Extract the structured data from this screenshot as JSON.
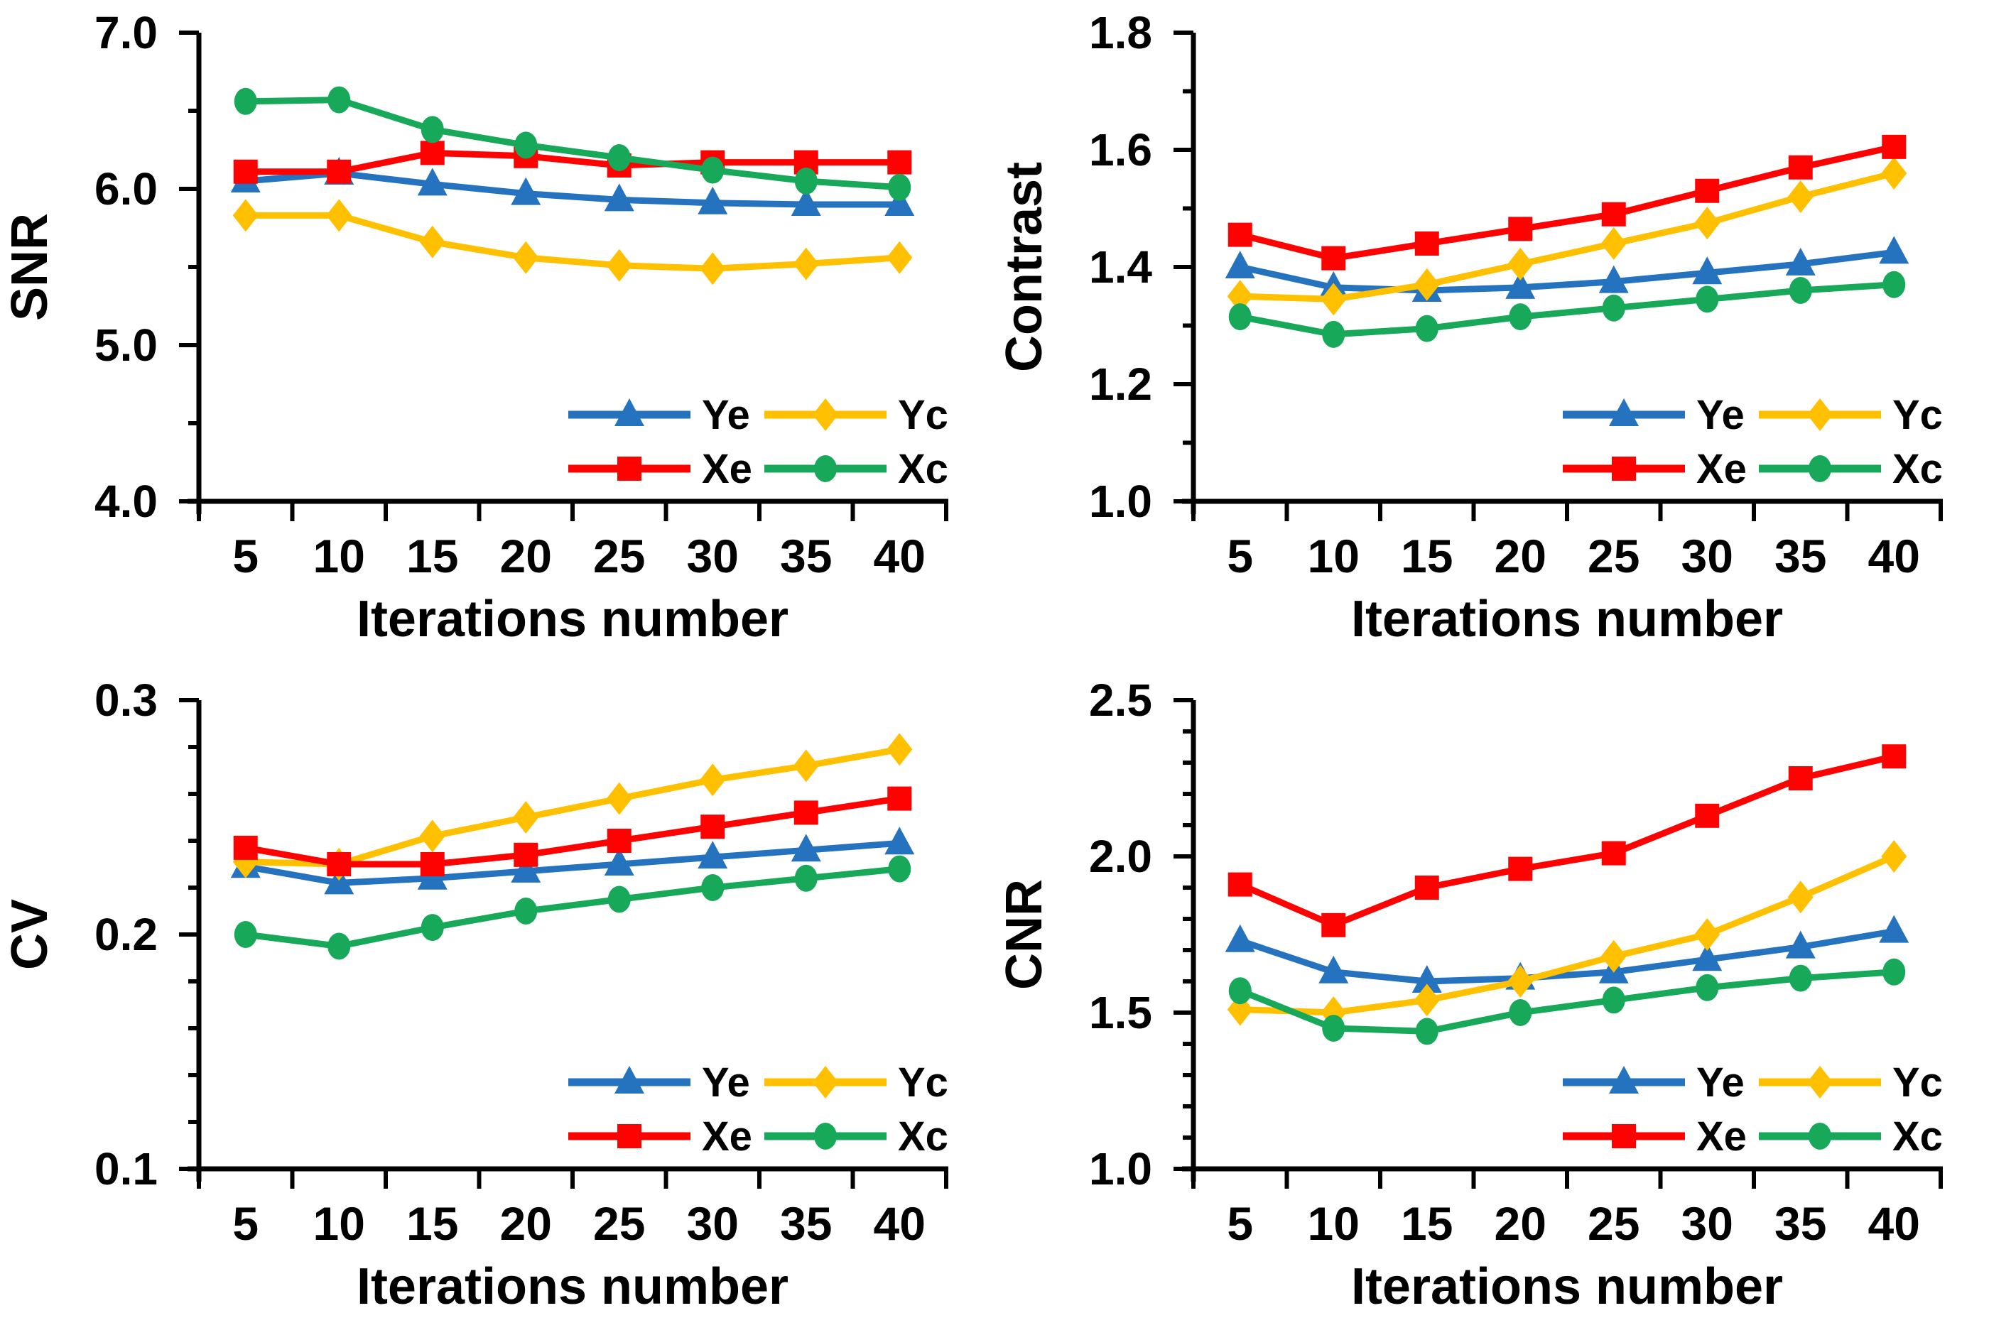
{
  "figure": {
    "background": "#ffffff",
    "text_color": "#000000",
    "layout": "2x2 grid of line charts"
  },
  "palette": {
    "Ye": "#2573BE",
    "Yc": "#FFC000",
    "Xe": "#FE0202",
    "Xc": "#18A85A"
  },
  "chart_data": [
    {
      "type": "line",
      "title": "",
      "ylabel": "SNR",
      "xlabel": "Iterations number",
      "categories": [
        "5",
        "10",
        "15",
        "20",
        "25",
        "30",
        "35",
        "40"
      ],
      "ylim": [
        4.0,
        7.0
      ],
      "y_major_step": 1.0,
      "y_minor_step": 0.5,
      "ytick_labels": [
        "4.0",
        "5.0",
        "6.0",
        "7.0"
      ],
      "grid": false,
      "legend_position": "inside-bottom-right",
      "series": [
        {
          "name": "Ye",
          "color": "#2573BE",
          "marker": "triangle",
          "values": [
            6.05,
            6.1,
            6.03,
            5.97,
            5.93,
            5.91,
            5.9,
            5.9
          ]
        },
        {
          "name": "Yc",
          "color": "#FFC000",
          "marker": "diamond",
          "values": [
            5.83,
            5.83,
            5.66,
            5.56,
            5.51,
            5.49,
            5.52,
            5.56
          ]
        },
        {
          "name": "Xe",
          "color": "#FE0202",
          "marker": "square",
          "values": [
            6.11,
            6.11,
            6.23,
            6.21,
            6.15,
            6.17,
            6.17,
            6.17
          ]
        },
        {
          "name": "Xc",
          "color": "#18A85A",
          "marker": "circle",
          "values": [
            6.56,
            6.57,
            6.38,
            6.28,
            6.2,
            6.12,
            6.05,
            6.01
          ]
        }
      ]
    },
    {
      "type": "line",
      "title": "",
      "ylabel": "Contrast",
      "xlabel": "Iterations number",
      "categories": [
        "5",
        "10",
        "15",
        "20",
        "25",
        "30",
        "35",
        "40"
      ],
      "ylim": [
        1.0,
        1.8
      ],
      "y_major_step": 0.2,
      "y_minor_step": 0.1,
      "ytick_labels": [
        "1.0",
        "1.2",
        "1.4",
        "1.6",
        "1.8"
      ],
      "grid": false,
      "legend_position": "inside-bottom-right",
      "series": [
        {
          "name": "Ye",
          "color": "#2573BE",
          "marker": "triangle",
          "values": [
            1.4,
            1.365,
            1.36,
            1.365,
            1.375,
            1.39,
            1.405,
            1.425
          ]
        },
        {
          "name": "Yc",
          "color": "#FFC000",
          "marker": "diamond",
          "values": [
            1.35,
            1.345,
            1.37,
            1.405,
            1.44,
            1.475,
            1.52,
            1.56
          ]
        },
        {
          "name": "Xe",
          "color": "#FE0202",
          "marker": "square",
          "values": [
            1.455,
            1.415,
            1.44,
            1.465,
            1.49,
            1.53,
            1.57,
            1.605
          ]
        },
        {
          "name": "Xc",
          "color": "#18A85A",
          "marker": "circle",
          "values": [
            1.315,
            1.285,
            1.295,
            1.315,
            1.33,
            1.345,
            1.36,
            1.37
          ]
        }
      ]
    },
    {
      "type": "line",
      "title": "",
      "ylabel": "CV",
      "xlabel": "Iterations number",
      "categories": [
        "5",
        "10",
        "15",
        "20",
        "25",
        "30",
        "35",
        "40"
      ],
      "ylim": [
        0.1,
        0.3
      ],
      "y_major_step": 0.1,
      "y_minor_step": 0.02,
      "ytick_labels": [
        "0.1",
        "0.2",
        "0.3"
      ],
      "grid": false,
      "legend_position": "inside-bottom-right",
      "series": [
        {
          "name": "Ye",
          "color": "#2573BE",
          "marker": "triangle",
          "values": [
            0.229,
            0.222,
            0.224,
            0.227,
            0.23,
            0.233,
            0.236,
            0.239
          ]
        },
        {
          "name": "Yc",
          "color": "#FFC000",
          "marker": "diamond",
          "values": [
            0.231,
            0.23,
            0.242,
            0.25,
            0.258,
            0.266,
            0.272,
            0.279
          ]
        },
        {
          "name": "Xe",
          "color": "#FE0202",
          "marker": "square",
          "values": [
            0.237,
            0.23,
            0.23,
            0.234,
            0.24,
            0.246,
            0.252,
            0.258
          ]
        },
        {
          "name": "Xc",
          "color": "#18A85A",
          "marker": "circle",
          "values": [
            0.2,
            0.195,
            0.203,
            0.21,
            0.215,
            0.22,
            0.224,
            0.228
          ]
        }
      ]
    },
    {
      "type": "line",
      "title": "",
      "ylabel": "CNR",
      "xlabel": "Iterations number",
      "categories": [
        "5",
        "10",
        "15",
        "20",
        "25",
        "30",
        "35",
        "40"
      ],
      "ylim": [
        1.0,
        2.5
      ],
      "y_major_step": 0.5,
      "y_minor_step": 0.1,
      "ytick_labels": [
        "1.0",
        "1.5",
        "2.0",
        "2.5"
      ],
      "grid": false,
      "legend_position": "inside-bottom-right",
      "series": [
        {
          "name": "Ye",
          "color": "#2573BE",
          "marker": "triangle",
          "values": [
            1.73,
            1.63,
            1.6,
            1.61,
            1.63,
            1.67,
            1.71,
            1.76
          ]
        },
        {
          "name": "Yc",
          "color": "#FFC000",
          "marker": "diamond",
          "values": [
            1.51,
            1.5,
            1.54,
            1.6,
            1.68,
            1.75,
            1.87,
            2.0
          ]
        },
        {
          "name": "Xe",
          "color": "#FE0202",
          "marker": "square",
          "values": [
            1.91,
            1.78,
            1.9,
            1.96,
            2.01,
            2.13,
            2.25,
            2.32
          ]
        },
        {
          "name": "Xc",
          "color": "#18A85A",
          "marker": "circle",
          "values": [
            1.57,
            1.45,
            1.44,
            1.5,
            1.54,
            1.58,
            1.61,
            1.63
          ]
        }
      ]
    }
  ]
}
